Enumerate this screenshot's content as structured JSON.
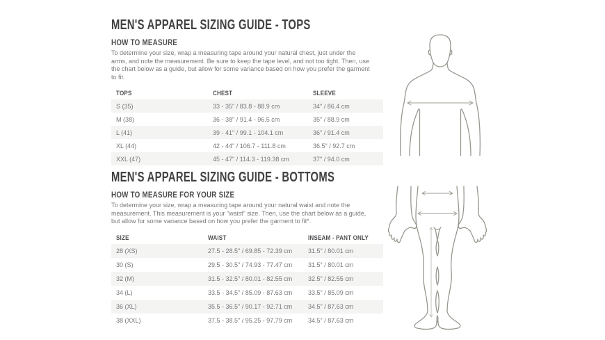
{
  "colors": {
    "background": "#ffffff",
    "title_text": "#414042",
    "subtitle_text": "#4c4c4e",
    "body_text": "#77787b",
    "table_header_text": "#515155",
    "row_stripe": "#f4f4f3",
    "figure_outline": "#97978f"
  },
  "sections": [
    {
      "title": "MEN'S APPAREL SIZING GUIDE - TOPS",
      "subtitle": "HOW TO MEASURE",
      "body": "To determine your size, wrap a measuring tape around your natural chest, just under the arms, and note the measurement. Be sure to keep the tape level, and not too tight. Then, use the chart below as a guide, but allow for some variance based on how you prefer the garment to fit.",
      "table": {
        "headers": [
          "TOPS",
          "CHEST",
          "SLEEVE"
        ],
        "rows": [
          [
            "S (35)",
            "33 - 35\" / 83.8 - 88.9 cm",
            "34\" / 86.4 cm"
          ],
          [
            "M (38)",
            "36 - 38\" / 91.4 - 96.5 cm",
            "35\" / 88.9 cm"
          ],
          [
            "L (41)",
            "39 - 41\" / 99.1 - 104.1 cm",
            "36\" / 91.4 cm"
          ],
          [
            "XL (44)",
            "42 - 44\" / 106.7 - 111.8 cm",
            "36.5\" / 92.7 cm"
          ],
          [
            "XXL (47)",
            "45 - 47\" / 114.3 - 119.38 cm",
            "37\" / 94.0 cm"
          ]
        ]
      }
    },
    {
      "title": "MEN'S APPAREL SIZING GUIDE - BOTTOMS",
      "subtitle": "HOW TO MEASURE FOR YOUR SIZE",
      "body": "To determine your size, wrap a measuring tape around your natural waist and note the measurement. This measurement is your \"waist\" size. Then, use the chart below as a guide, but allow for some variance based on how you prefer the garment to fit*.",
      "table": {
        "headers": [
          "SIZE",
          "WAIST",
          "INSEAM - PANT ONLY"
        ],
        "rows": [
          [
            "28 (XS)",
            "27.5 - 28.5\" / 69.85 - 72.39 cm",
            "31.5\" / 80.01 cm"
          ],
          [
            "30 (S)",
            "29.5 - 30.5\" / 74.93 - 77.47 cm",
            "31.5\" / 80.01 cm"
          ],
          [
            "32 (M)",
            "31.5 - 32.5\" / 80.01 - 82.55 cm",
            "32.5\" / 82.55 cm"
          ],
          [
            "34 (L)",
            "33.5 - 34.5\" / 85.09 - 87.63 cm",
            "33.5\" / 85.09 cm"
          ],
          [
            "36 (XL)",
            "35.5 - 36.5\" / 90.17 - 92.71 cm",
            "34.5\" / 87.63 cm"
          ],
          [
            "38 (XXL)",
            "37.5 - 38.5\" / 95.25 - 97.79 cm",
            "34.5\" / 87.63 cm"
          ]
        ]
      }
    }
  ],
  "figures": [
    {
      "name": "upper-body-chest-figure",
      "depicts": "male upper body outline with horizontal chest measurement arrow"
    },
    {
      "name": "lower-body-waist-inseam-figure",
      "depicts": "male lower body outline with waist arrow, hip arrow and vertical inseam measurement line"
    }
  ]
}
